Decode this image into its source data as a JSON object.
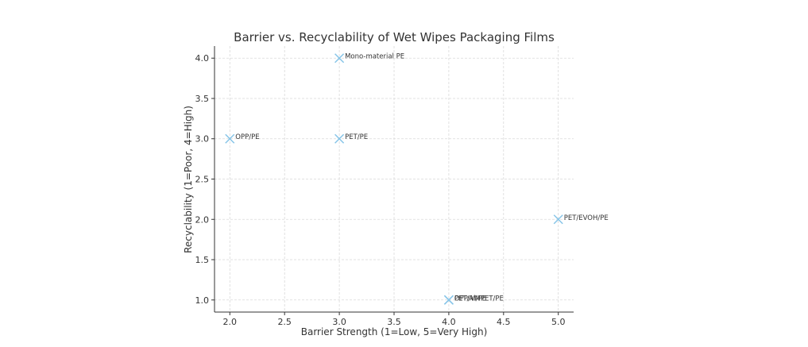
{
  "chart_data": {
    "type": "scatter",
    "title": "Barrier vs. Recyclability of Wet Wipes Packaging Films",
    "xlabel": "Barrier Strength (1=Low, 5=Very High)",
    "ylabel": "Recyclability (1=Poor, 4=High)",
    "xlim": [
      1.86,
      5.14
    ],
    "ylim": [
      0.85,
      4.15
    ],
    "xticks": [
      "2.0",
      "2.5",
      "3.0",
      "3.5",
      "4.0",
      "4.5",
      "5.0"
    ],
    "yticks": [
      "1.0",
      "1.5",
      "2.0",
      "2.5",
      "3.0",
      "3.5",
      "4.0"
    ],
    "grid": true,
    "marker": "x",
    "color": "#87c5e8",
    "points": [
      {
        "label": "OPP/PE",
        "x": 2.0,
        "y": 3.0
      },
      {
        "label": "PET/PE",
        "x": 3.0,
        "y": 3.0
      },
      {
        "label": "Mono-material PE",
        "x": 3.0,
        "y": 4.0
      },
      {
        "label": "PET/EVOH/PE",
        "x": 5.0,
        "y": 2.0
      },
      {
        "label": "OPP/VMPET/PE",
        "x": 4.0,
        "y": 1.0
      },
      {
        "label": "PET/Al/PE",
        "x": 4.0,
        "y": 1.0
      }
    ]
  }
}
